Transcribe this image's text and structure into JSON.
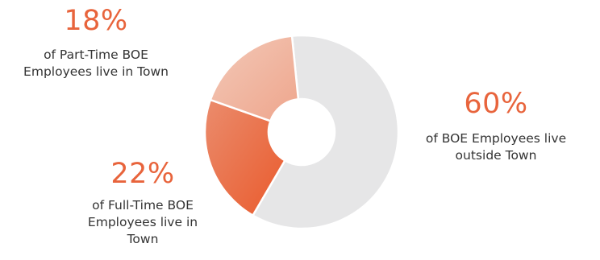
{
  "chart_data": {
    "type": "donut",
    "title": "",
    "slices": [
      {
        "label": "of BOE Employees live outside Town",
        "value": 60,
        "display": "60%",
        "color": "#e6e6e7"
      },
      {
        "label": "of Full-Time BOE Employees live in Town",
        "value": 22,
        "display": "22%",
        "color": "#ea6439",
        "color_light": "#eb8665"
      },
      {
        "label": "of Part-Time BOE Employees live in Town",
        "value": 18,
        "display": "18%",
        "color": "#f0ad95",
        "color_light": "#f2c4b3"
      }
    ],
    "legend": "none",
    "start_at": "top",
    "direction": "clockwise"
  },
  "callouts": {
    "part_time": {
      "pct": "18%",
      "lines": [
        "of Part-Time BOE",
        "Employees live in Town"
      ]
    },
    "full_time": {
      "pct": "22%",
      "lines": [
        "of Full-Time BOE",
        "Employees live in",
        "Town"
      ]
    },
    "outside": {
      "pct": "60%",
      "lines": [
        "of BOE Employees live",
        "outside Town"
      ]
    }
  }
}
